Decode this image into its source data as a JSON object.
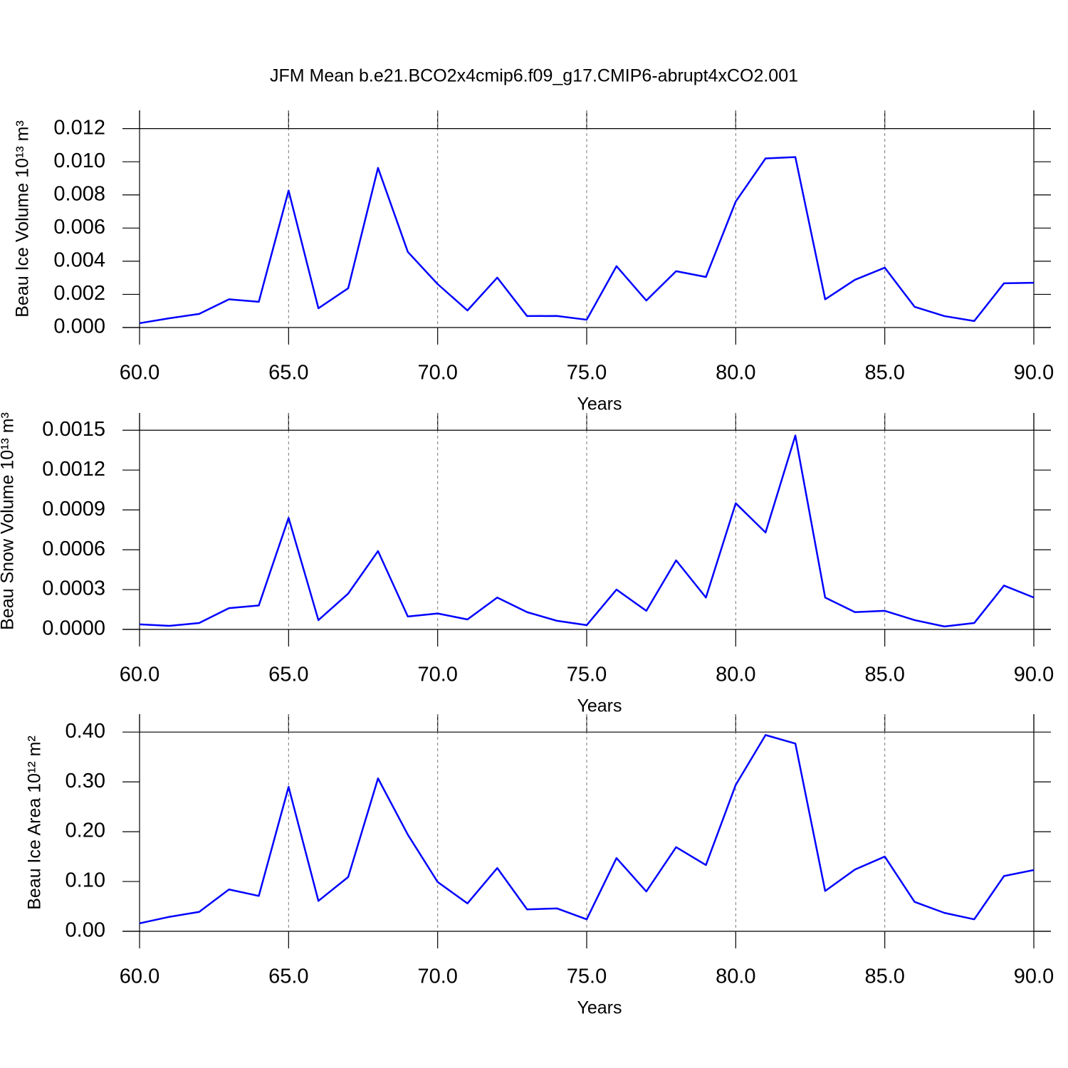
{
  "title": "JFM Mean b.e21.BCO2x4cmip6.f09_g17.CMIP6-abrupt4xCO2.001",
  "chart_data": [
    {
      "type": "line",
      "ylabel": "Beau Ice Volume 10¹³ m³",
      "xlabel": "Years",
      "color": "#0000ff",
      "x": [
        60,
        61,
        62,
        63,
        64,
        65,
        66,
        67,
        68,
        69,
        70,
        71,
        72,
        73,
        74,
        75,
        76,
        77,
        78,
        79,
        80,
        81,
        82,
        83,
        84,
        85,
        86,
        87,
        88,
        89,
        90
      ],
      "values": [
        0.00026,
        0.00056,
        0.00082,
        0.0017,
        0.00155,
        0.00826,
        0.00116,
        0.00237,
        0.00963,
        0.00456,
        0.00262,
        0.00103,
        0.00301,
        0.00069,
        0.0007,
        0.00047,
        0.0037,
        0.00163,
        0.0034,
        0.00305,
        0.0076,
        0.0102,
        0.01028,
        0.0017,
        0.00288,
        0.00361,
        0.00125,
        0.00069,
        0.00039,
        0.00267,
        0.0027
      ],
      "xlim": [
        60,
        90
      ],
      "xticks": [
        {
          "value": 60,
          "label": "60.0"
        },
        {
          "value": 65,
          "label": "65.0"
        },
        {
          "value": 70,
          "label": "70.0"
        },
        {
          "value": 75,
          "label": "75.0"
        },
        {
          "value": 80,
          "label": "80.0"
        },
        {
          "value": 85,
          "label": "85.0"
        },
        {
          "value": 90,
          "label": "90.0"
        }
      ],
      "ylim": [
        0,
        0.0131
      ],
      "yticks": [
        {
          "value": 0,
          "label": "0.000"
        },
        0.002,
        0.004,
        0.006,
        0.008,
        {
          "value": 0.01,
          "label": "0.010"
        },
        0.012
      ]
    },
    {
      "type": "line",
      "ylabel": "Beau Snow Volume 10¹³ m³",
      "xlabel": "Years",
      "color": "#0000ff",
      "x": [
        60,
        61,
        62,
        63,
        64,
        65,
        66,
        67,
        68,
        69,
        70,
        71,
        72,
        73,
        74,
        75,
        76,
        77,
        78,
        79,
        80,
        81,
        82,
        83,
        84,
        85,
        86,
        87,
        88,
        89,
        90
      ],
      "values": [
        3.8e-05,
        2.7e-05,
        4.8e-05,
        0.00016,
        0.00018,
        0.00084,
        7e-05,
        0.00027,
        0.00059,
        9.7e-05,
        0.00012,
        7.5e-05,
        0.00024,
        0.00013,
        6.5e-05,
        3.2e-05,
        0.0003,
        0.00014,
        0.00052,
        0.00024,
        0.00095,
        0.00073,
        0.00146,
        0.00024,
        0.00013,
        0.00014,
        7e-05,
        2.2e-05,
        4.8e-05,
        0.00033,
        0.00024
      ],
      "xlim": [
        60,
        90
      ],
      "xticks": [
        {
          "value": 60,
          "label": "60.0"
        },
        {
          "value": 65,
          "label": "65.0"
        },
        {
          "value": 70,
          "label": "70.0"
        },
        {
          "value": 75,
          "label": "75.0"
        },
        {
          "value": 80,
          "label": "80.0"
        },
        {
          "value": 85,
          "label": "85.0"
        },
        {
          "value": 90,
          "label": "90.0"
        }
      ],
      "ylim": [
        0,
        0.00163
      ],
      "yticks": [
        {
          "value": 0,
          "label": "0.0000"
        },
        0.0003,
        0.0006,
        0.0009,
        0.0012,
        0.0015
      ]
    },
    {
      "type": "line",
      "ylabel": "Beau Ice Area 10¹² m²",
      "xlabel": "Years",
      "color": "#0000ff",
      "x": [
        60,
        61,
        62,
        63,
        64,
        65,
        66,
        67,
        68,
        69,
        70,
        71,
        72,
        73,
        74,
        75,
        76,
        77,
        78,
        79,
        80,
        81,
        82,
        83,
        84,
        85,
        86,
        87,
        88,
        89,
        90
      ],
      "values": [
        0.016,
        0.029,
        0.039,
        0.084,
        0.071,
        0.29,
        0.061,
        0.109,
        0.307,
        0.194,
        0.099,
        0.056,
        0.127,
        0.044,
        0.046,
        0.024,
        0.147,
        0.08,
        0.169,
        0.133,
        0.294,
        0.394,
        0.377,
        0.081,
        0.124,
        0.15,
        0.059,
        0.037,
        0.024,
        0.111,
        0.123
      ],
      "xlim": [
        60,
        90
      ],
      "xticks": [
        {
          "value": 60,
          "label": "60.0"
        },
        {
          "value": 65,
          "label": "65.0"
        },
        {
          "value": 70,
          "label": "70.0"
        },
        {
          "value": 75,
          "label": "75.0"
        },
        {
          "value": 80,
          "label": "80.0"
        },
        {
          "value": 85,
          "label": "85.0"
        },
        {
          "value": 90,
          "label": "90.0"
        }
      ],
      "ylim": [
        0,
        0.436
      ],
      "yticks": [
        {
          "value": 0,
          "label": "0.00"
        },
        {
          "value": 0.1,
          "label": "0.10"
        },
        {
          "value": 0.2,
          "label": "0.20"
        },
        {
          "value": 0.3,
          "label": "0.30"
        },
        {
          "value": 0.4,
          "label": "0.40"
        }
      ]
    }
  ]
}
